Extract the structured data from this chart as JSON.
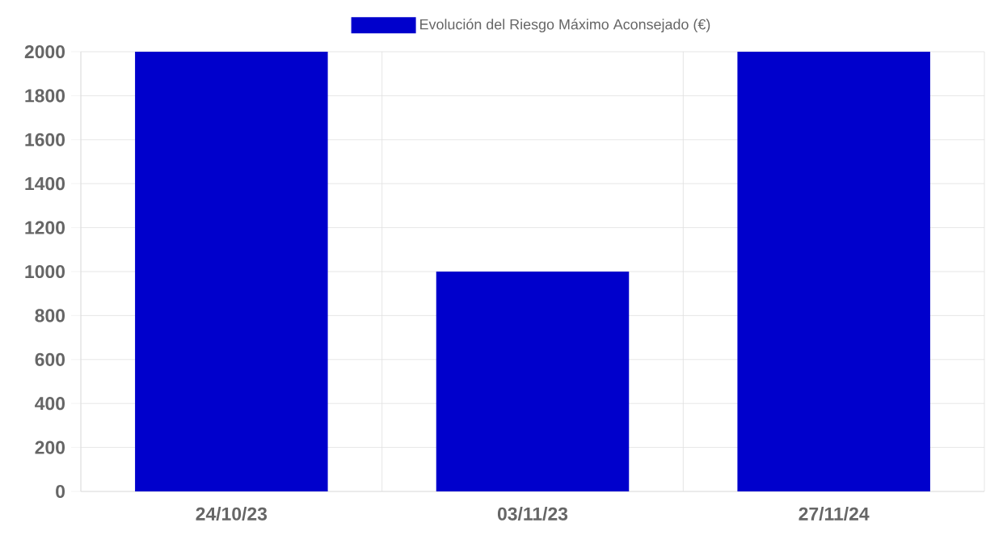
{
  "chart_data": {
    "type": "bar",
    "categories": [
      "24/10/23",
      "03/11/23",
      "27/11/24"
    ],
    "series": [
      {
        "name": "Evolución del Riesgo Máximo Aconsejado (€)",
        "color": "#0000cc",
        "values": [
          2000,
          1000,
          2000
        ]
      }
    ],
    "ylim": [
      0,
      2000
    ],
    "yticks": [
      0,
      200,
      400,
      600,
      800,
      1000,
      1200,
      1400,
      1600,
      1800,
      2000
    ],
    "grid": true,
    "legend": "top"
  }
}
